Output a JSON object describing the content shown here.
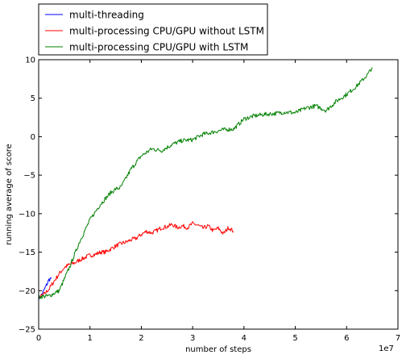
{
  "chart_data": {
    "type": "line",
    "title": "",
    "xlabel": "number of steps",
    "ylabel": "running average of score",
    "x_multiplier_label": "1e7",
    "xlim": [
      0,
      7
    ],
    "ylim": [
      -25,
      10
    ],
    "x_ticks": [
      "0",
      "1",
      "2",
      "3",
      "4",
      "5",
      "6",
      "7"
    ],
    "y_ticks": [
      "10",
      "5",
      "0",
      "−5",
      "−10",
      "−15",
      "−20",
      "−25"
    ],
    "grid": false,
    "legend_position": "top-left, above plot",
    "x_units": "steps (×1e7)",
    "series": [
      {
        "name": "multi-threading",
        "color": "#0000ff",
        "x": [
          0.0,
          0.05,
          0.1,
          0.15,
          0.2,
          0.25
        ],
        "y": [
          -21.0,
          -20.6,
          -20.0,
          -19.3,
          -18.6,
          -18.3
        ]
      },
      {
        "name": "multi-processing CPU/GPU without LSTM",
        "color": "#ff0000",
        "x": [
          0.0,
          0.1,
          0.2,
          0.3,
          0.4,
          0.5,
          0.6,
          0.7,
          0.8,
          0.9,
          1.0,
          1.1,
          1.2,
          1.3,
          1.4,
          1.5,
          1.6,
          1.7,
          1.8,
          1.9,
          2.0,
          2.1,
          2.2,
          2.3,
          2.4,
          2.5,
          2.6,
          2.7,
          2.8,
          2.9,
          3.0,
          3.1,
          3.2,
          3.3,
          3.4,
          3.5,
          3.6,
          3.7,
          3.8
        ],
        "y": [
          -20.9,
          -20.5,
          -19.8,
          -18.8,
          -17.8,
          -17.0,
          -16.6,
          -16.4,
          -16.0,
          -15.7,
          -15.4,
          -15.3,
          -15.0,
          -15.0,
          -14.6,
          -14.2,
          -13.9,
          -13.7,
          -13.4,
          -13.2,
          -12.7,
          -12.3,
          -12.5,
          -12.2,
          -11.8,
          -11.7,
          -11.4,
          -11.8,
          -11.6,
          -11.8,
          -11.3,
          -11.5,
          -11.9,
          -11.6,
          -12.2,
          -11.9,
          -12.6,
          -11.8,
          -12.3
        ]
      },
      {
        "name": "multi-processing CPU/GPU with LSTM",
        "color": "#008000",
        "x": [
          0.0,
          0.2,
          0.4,
          0.6,
          0.8,
          1.0,
          1.2,
          1.4,
          1.5,
          1.6,
          1.8,
          2.0,
          2.2,
          2.4,
          2.6,
          2.8,
          3.0,
          3.2,
          3.4,
          3.6,
          3.8,
          4.0,
          4.2,
          4.4,
          4.6,
          4.8,
          5.0,
          5.2,
          5.4,
          5.6,
          5.8,
          6.0,
          6.2,
          6.4,
          6.5
        ],
        "y": [
          -20.8,
          -20.7,
          -20.0,
          -17.0,
          -13.6,
          -10.8,
          -8.8,
          -7.3,
          -6.8,
          -6.6,
          -4.2,
          -2.5,
          -1.6,
          -1.8,
          -1.0,
          -0.5,
          -0.4,
          0.3,
          0.6,
          0.9,
          1.0,
          2.3,
          2.7,
          2.9,
          3.0,
          3.2,
          3.1,
          3.7,
          4.0,
          3.4,
          4.6,
          5.5,
          6.6,
          8.0,
          9.0
        ]
      }
    ]
  }
}
